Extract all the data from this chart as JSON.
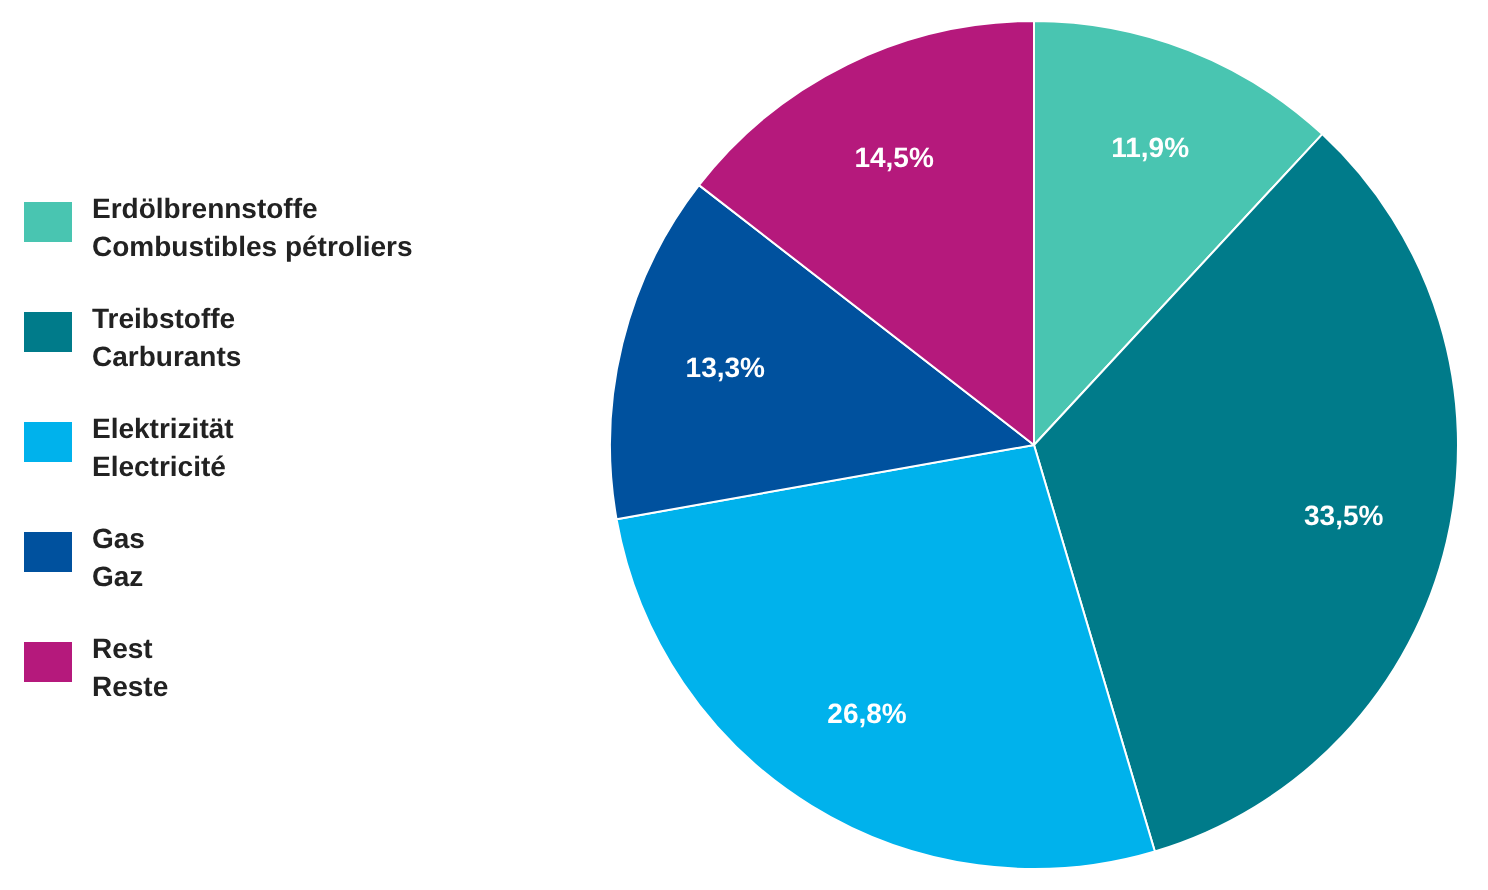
{
  "chart_data": {
    "type": "pie",
    "categories": [
      "Erdölbrennstoffe\nCombustibles pétroliers",
      "Treibstoffe\nCarburants",
      "Elektrizität\nElectricité",
      "Gas\nGaz",
      "Rest\nReste"
    ],
    "values": [
      11.9,
      33.5,
      26.8,
      13.3,
      14.5
    ],
    "value_labels": [
      "11,9%",
      "33,5%",
      "26,8%",
      "13,3%",
      "14,5%"
    ],
    "colors": [
      "#49c5b1",
      "#007b8a",
      "#00b2ec",
      "#00519e",
      "#b5197c"
    ],
    "legend": "left"
  }
}
